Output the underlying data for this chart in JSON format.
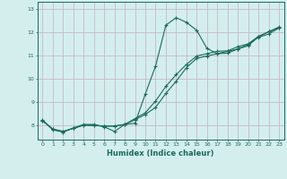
{
  "xlabel": "Humidex (Indice chaleur)",
  "bg_color": "#d4eeee",
  "line_color": "#1a6b5a",
  "grid_color": "#c8b8c8",
  "xlim": [
    -0.5,
    23.5
  ],
  "ylim": [
    7.4,
    13.3
  ],
  "xticks": [
    0,
    1,
    2,
    3,
    4,
    5,
    6,
    7,
    8,
    9,
    10,
    11,
    12,
    13,
    14,
    15,
    16,
    17,
    18,
    19,
    20,
    21,
    22,
    23
  ],
  "yticks": [
    8,
    9,
    10,
    11,
    12,
    13
  ],
  "line1_x": [
    0,
    1,
    2,
    3,
    4,
    5,
    6,
    7,
    8,
    9,
    10,
    11,
    12,
    13,
    14,
    15,
    16,
    17,
    18,
    19,
    20,
    21,
    22,
    23
  ],
  "line1_y": [
    8.25,
    7.82,
    7.72,
    7.9,
    8.05,
    8.05,
    7.95,
    7.75,
    8.05,
    8.1,
    9.35,
    10.55,
    12.3,
    12.62,
    12.42,
    12.08,
    11.3,
    11.08,
    11.1,
    11.28,
    11.42,
    11.8,
    12.02,
    12.22
  ],
  "line2_x": [
    0,
    1,
    2,
    3,
    4,
    5,
    6,
    7,
    8,
    9,
    10,
    11,
    12,
    13,
    14,
    15,
    16,
    17,
    18,
    19,
    20,
    21,
    22,
    23
  ],
  "line2_y": [
    8.22,
    7.85,
    7.75,
    7.88,
    8.02,
    8.02,
    7.98,
    7.98,
    8.05,
    8.3,
    8.55,
    9.05,
    9.68,
    10.18,
    10.62,
    10.98,
    11.08,
    11.18,
    11.2,
    11.38,
    11.5,
    11.82,
    12.02,
    12.18
  ],
  "line3_x": [
    0,
    1,
    2,
    3,
    4,
    5,
    6,
    7,
    8,
    9,
    10,
    11,
    12,
    13,
    14,
    15,
    16,
    17,
    18,
    19,
    20,
    21,
    22,
    23
  ],
  "line3_y": [
    8.2,
    7.85,
    7.75,
    7.88,
    8.02,
    8.0,
    7.98,
    7.98,
    8.05,
    8.25,
    8.48,
    8.78,
    9.38,
    9.9,
    10.48,
    10.88,
    10.98,
    11.08,
    11.18,
    11.28,
    11.48,
    11.78,
    11.92,
    12.18
  ]
}
